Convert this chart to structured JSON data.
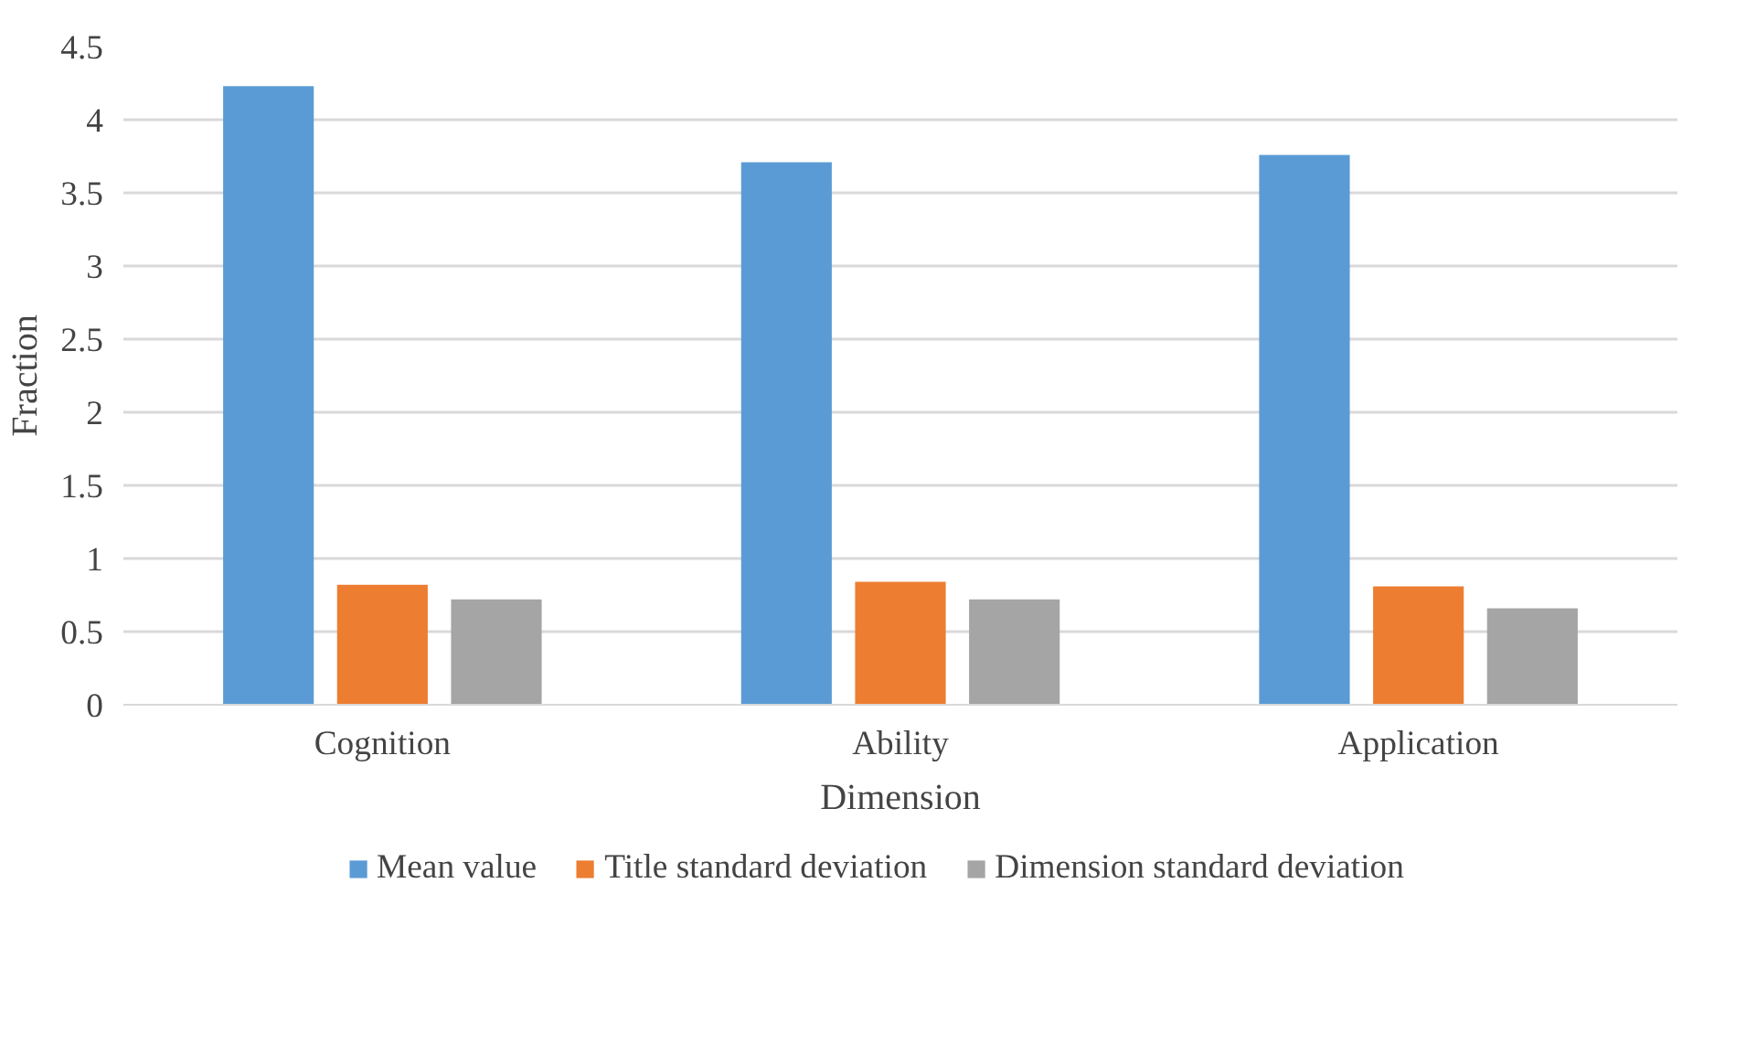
{
  "chart_data": {
    "type": "bar",
    "xlabel": "Dimension",
    "ylabel": "Fraction",
    "categories": [
      "Cognition",
      "Ability",
      "Application"
    ],
    "series": [
      {
        "name": "Mean value",
        "color": "#5b9bd5",
        "values": [
          4.23,
          3.71,
          3.76
        ]
      },
      {
        "name": "Title standard deviation",
        "color": "#ed7d31",
        "values": [
          0.82,
          0.84,
          0.81
        ]
      },
      {
        "name": "Dimension standard deviation",
        "color": "#a5a5a5",
        "values": [
          0.72,
          0.72,
          0.66
        ]
      }
    ],
    "ylim": [
      0,
      4.5
    ],
    "yticks": [
      0,
      0.5,
      1,
      1.5,
      2,
      2.5,
      3,
      3.5,
      4,
      4.5
    ],
    "grid": "y",
    "legend": "bottom"
  }
}
